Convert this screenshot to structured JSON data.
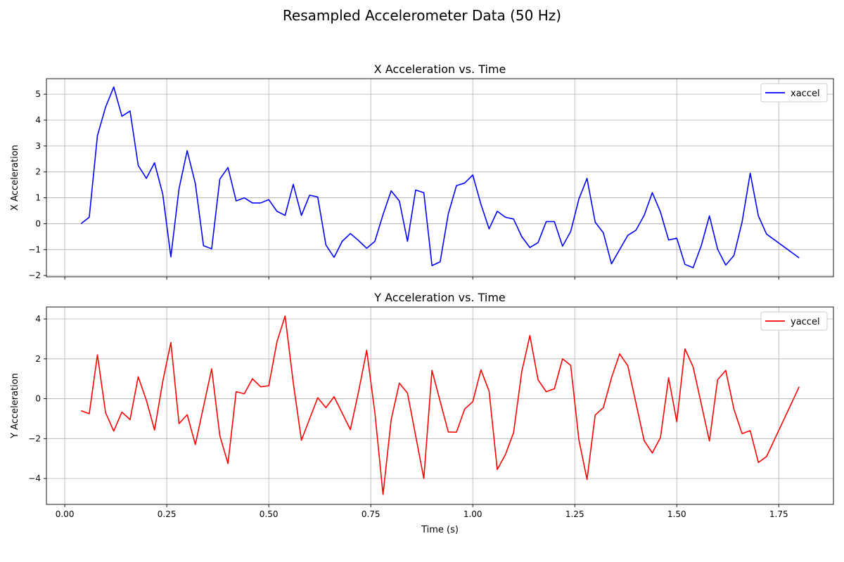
{
  "figure": {
    "suptitle": "Resampled Accelerometer Data (50 Hz)"
  },
  "chart_data": [
    {
      "type": "line",
      "title": "X Acceleration vs. Time",
      "xlabel": "",
      "ylabel": "X Acceleration",
      "xlim": [
        -0.045,
        1.884
      ],
      "ylim": [
        -2.05,
        5.6
      ],
      "xticks": [
        0.0,
        0.25,
        0.5,
        0.75,
        1.0,
        1.25,
        1.5,
        1.75
      ],
      "xtick_labels": [
        "",
        "",
        "",
        "",
        "",
        "",
        "",
        ""
      ],
      "yticks": [
        -2,
        -1,
        0,
        1,
        2,
        3,
        4,
        5
      ],
      "ytick_labels": [
        "−2",
        "−1",
        "0",
        "1",
        "2",
        "3",
        "4",
        "5"
      ],
      "grid": true,
      "legend_position": "top-right",
      "series": [
        {
          "name": "xaccel",
          "color": "#0000ff",
          "x": [
            0.04,
            0.06,
            0.08,
            0.1,
            0.12,
            0.14,
            0.16,
            0.18,
            0.2,
            0.22,
            0.24,
            0.26,
            0.28,
            0.3,
            0.32,
            0.34,
            0.36,
            0.38,
            0.4,
            0.42,
            0.44,
            0.46,
            0.48,
            0.5,
            0.52,
            0.54,
            0.56,
            0.58,
            0.6,
            0.62,
            0.64,
            0.66,
            0.68,
            0.7,
            0.72,
            0.74,
            0.76,
            0.78,
            0.8,
            0.82,
            0.84,
            0.86,
            0.88,
            0.9,
            0.92,
            0.94,
            0.96,
            0.98,
            1.0,
            1.02,
            1.04,
            1.06,
            1.08,
            1.1,
            1.12,
            1.14,
            1.16,
            1.18,
            1.2,
            1.22,
            1.24,
            1.26,
            1.28,
            1.3,
            1.32,
            1.34,
            1.36,
            1.38,
            1.4,
            1.42,
            1.44,
            1.46,
            1.48,
            1.5,
            1.52,
            1.54,
            1.56,
            1.58,
            1.6,
            1.62,
            1.64,
            1.66,
            1.68,
            1.7,
            1.72,
            1.8
          ],
          "y": [
            0.0,
            0.25,
            3.4,
            4.5,
            5.28,
            4.15,
            4.35,
            2.25,
            1.75,
            2.35,
            1.15,
            -1.28,
            1.35,
            2.82,
            1.55,
            -0.85,
            -0.97,
            1.72,
            2.17,
            0.88,
            1.0,
            0.8,
            0.8,
            0.93,
            0.48,
            0.32,
            1.52,
            0.32,
            1.1,
            1.03,
            -0.82,
            -1.3,
            -0.68,
            -0.38,
            -0.65,
            -0.95,
            -0.68,
            0.35,
            1.27,
            0.88,
            -0.68,
            1.3,
            1.2,
            -1.62,
            -1.47,
            0.38,
            1.47,
            1.57,
            1.88,
            0.75,
            -0.2,
            0.48,
            0.25,
            0.18,
            -0.5,
            -0.92,
            -0.73,
            0.08,
            0.08,
            -0.87,
            -0.3,
            0.95,
            1.75,
            0.06,
            -0.35,
            -1.55,
            -1.0,
            -0.45,
            -0.25,
            0.32,
            1.2,
            0.45,
            -0.63,
            -0.56,
            -1.57,
            -1.7,
            -0.85,
            0.3,
            -0.98,
            -1.6,
            -1.23,
            0.06,
            1.95,
            0.3,
            -0.4,
            -1.32
          ]
        }
      ]
    },
    {
      "type": "line",
      "title": "Y Acceleration vs. Time",
      "xlabel": "Time (s)",
      "ylabel": "Y Acceleration",
      "xlim": [
        -0.045,
        1.884
      ],
      "ylim": [
        -5.3,
        4.6
      ],
      "xticks": [
        0.0,
        0.25,
        0.5,
        0.75,
        1.0,
        1.25,
        1.5,
        1.75
      ],
      "xtick_labels": [
        "0.00",
        "0.25",
        "0.50",
        "0.75",
        "1.00",
        "1.25",
        "1.50",
        "1.75"
      ],
      "yticks": [
        -4,
        -2,
        0,
        2,
        4
      ],
      "ytick_labels": [
        "−4",
        "−2",
        "0",
        "2",
        "4"
      ],
      "grid": true,
      "legend_position": "top-right",
      "series": [
        {
          "name": "yaccel",
          "color": "#ff0000",
          "x": [
            0.04,
            0.06,
            0.08,
            0.1,
            0.12,
            0.14,
            0.16,
            0.18,
            0.2,
            0.22,
            0.24,
            0.26,
            0.28,
            0.3,
            0.32,
            0.36,
            0.38,
            0.4,
            0.42,
            0.44,
            0.46,
            0.48,
            0.5,
            0.52,
            0.54,
            0.56,
            0.58,
            0.62,
            0.64,
            0.66,
            0.7,
            0.72,
            0.74,
            0.76,
            0.78,
            0.8,
            0.82,
            0.84,
            0.88,
            0.9,
            0.94,
            0.96,
            0.98,
            1.0,
            1.02,
            1.04,
            1.06,
            1.08,
            1.1,
            1.12,
            1.14,
            1.16,
            1.18,
            1.2,
            1.22,
            1.24,
            1.26,
            1.28,
            1.3,
            1.32,
            1.34,
            1.36,
            1.38,
            1.42,
            1.44,
            1.46,
            1.48,
            1.5,
            1.52,
            1.54,
            1.58,
            1.6,
            1.62,
            1.64,
            1.66,
            1.68,
            1.7,
            1.72,
            1.8
          ],
          "y": [
            -0.6,
            -0.75,
            2.2,
            -0.7,
            -1.62,
            -0.67,
            -1.05,
            1.1,
            -0.08,
            -1.57,
            0.85,
            2.82,
            -1.25,
            -0.8,
            -2.3,
            1.5,
            -1.85,
            -3.25,
            0.35,
            0.25,
            1.0,
            0.6,
            0.65,
            2.85,
            4.15,
            0.8,
            -2.08,
            0.05,
            -0.45,
            0.1,
            -1.55,
            0.35,
            2.43,
            -0.7,
            -4.8,
            -1.05,
            0.78,
            0.28,
            -4.0,
            1.42,
            -1.67,
            -1.68,
            -0.52,
            -0.15,
            1.45,
            0.38,
            -3.55,
            -2.8,
            -1.7,
            1.35,
            3.17,
            0.95,
            0.35,
            0.5,
            2.0,
            1.67,
            -2.05,
            -4.05,
            -0.82,
            -0.45,
            1.05,
            2.25,
            1.65,
            -2.1,
            -2.72,
            -1.95,
            1.05,
            -1.15,
            2.5,
            1.6,
            -2.12,
            0.95,
            1.42,
            -0.52,
            -1.75,
            -1.6,
            -3.2,
            -2.9,
            0.6
          ]
        }
      ]
    }
  ]
}
